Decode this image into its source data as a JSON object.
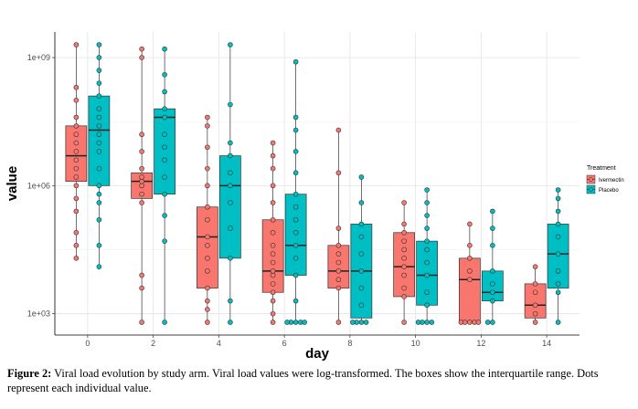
{
  "chart_data": {
    "type": "box",
    "title": "",
    "xlabel": "day",
    "ylabel": "value",
    "y_scale": "log10",
    "ylim": [
      2.5,
      9.6
    ],
    "x_ticks": [
      "0",
      "2",
      "4",
      "6",
      "8",
      "10",
      "12",
      "14"
    ],
    "y_ticks": [
      "1e+03",
      "1e+06",
      "1e+09"
    ],
    "y_tick_values": [
      1000,
      1000000,
      1000000000
    ],
    "legend": {
      "title": "Treatment",
      "position": "right",
      "entries": [
        "Ivermectin",
        "Placebo"
      ]
    },
    "series": [
      {
        "name": "Ivermectin",
        "color": "#F8766D",
        "boxes": [
          {
            "day": 0,
            "q1": 6.1,
            "median": 6.7,
            "q3": 7.4,
            "whisker_low": 4.3,
            "whisker_high": 9.3,
            "points": [
              4.3,
              4.6,
              4.9,
              5.4,
              5.7,
              6.0,
              6.2,
              6.4,
              6.6,
              6.8,
              7.0,
              7.2,
              7.4,
              7.6,
              8.0,
              8.3,
              9.3
            ]
          },
          {
            "day": 2,
            "q1": 5.7,
            "median": 6.1,
            "q3": 6.3,
            "whisker_low": 2.8,
            "whisker_high": 9.2,
            "points": [
              2.8,
              3.6,
              3.9,
              5.6,
              5.8,
              6.0,
              6.1,
              6.2,
              6.4,
              6.8,
              7.2,
              9.0,
              9.2
            ]
          },
          {
            "day": 4,
            "q1": 3.6,
            "median": 4.8,
            "q3": 5.5,
            "whisker_low": 2.8,
            "whisker_high": 7.6,
            "points": [
              2.8,
              3.1,
              3.3,
              3.6,
              4.0,
              4.3,
              4.6,
              4.8,
              5.2,
              5.5,
              6.0,
              6.4,
              6.9,
              7.4,
              7.6
            ]
          },
          {
            "day": 6,
            "q1": 3.5,
            "median": 4.0,
            "q3": 5.2,
            "whisker_low": 2.8,
            "whisker_high": 7.0,
            "points": [
              2.8,
              3.0,
              3.3,
              3.5,
              3.7,
              3.9,
              4.0,
              4.2,
              4.4,
              4.6,
              4.9,
              5.2,
              5.6,
              6.0,
              6.4,
              6.7,
              7.0
            ]
          },
          {
            "day": 8,
            "q1": 3.6,
            "median": 4.0,
            "q3": 4.6,
            "whisker_low": 2.8,
            "whisker_high": 7.3,
            "points": [
              2.8,
              3.6,
              3.8,
              4.0,
              4.2,
              4.4,
              4.6,
              5.0,
              6.3,
              7.3
            ]
          },
          {
            "day": 10,
            "q1": 3.4,
            "median": 4.1,
            "q3": 4.9,
            "whisker_low": 2.8,
            "whisker_high": 5.6,
            "points": [
              2.8,
              3.4,
              3.6,
              3.9,
              4.1,
              4.3,
              4.5,
              4.7,
              4.9,
              5.1,
              5.6
            ]
          },
          {
            "day": 12,
            "q1": 2.8,
            "median": 3.8,
            "q3": 4.3,
            "whisker_low": 2.8,
            "whisker_high": 5.1,
            "points": [
              2.8,
              2.8,
              2.8,
              2.8,
              2.8,
              3.8,
              4.0,
              4.3,
              4.6,
              5.1
            ]
          },
          {
            "day": 14,
            "q1": 2.9,
            "median": 3.2,
            "q3": 3.7,
            "whisker_low": 2.8,
            "whisker_high": 4.1,
            "points": [
              2.8,
              3.0,
              3.2,
              3.5,
              3.7,
              4.1
            ]
          }
        ]
      },
      {
        "name": "Placebo",
        "color": "#00BFC4",
        "boxes": [
          {
            "day": 0,
            "q1": 6.0,
            "median": 7.3,
            "q3": 8.1,
            "whisker_low": 4.1,
            "whisker_high": 9.3,
            "points": [
              4.1,
              4.6,
              5.2,
              5.6,
              5.8,
              6.0,
              6.4,
              6.8,
              7.0,
              7.2,
              7.4,
              7.6,
              7.8,
              8.1,
              8.4,
              8.7,
              9.0,
              9.3
            ]
          },
          {
            "day": 2,
            "q1": 5.8,
            "median": 7.6,
            "q3": 7.8,
            "whisker_low": 2.8,
            "whisker_high": 9.2,
            "points": [
              2.8,
              4.7,
              5.3,
              5.8,
              6.2,
              6.6,
              6.9,
              7.2,
              7.6,
              7.8,
              8.2,
              8.6,
              9.2
            ]
          },
          {
            "day": 4,
            "q1": 4.3,
            "median": 6.0,
            "q3": 6.7,
            "whisker_low": 2.8,
            "whisker_high": 9.3,
            "points": [
              2.8,
              3.3,
              4.3,
              5.0,
              5.6,
              6.0,
              6.3,
              6.7,
              7.0,
              7.9,
              9.3
            ]
          },
          {
            "day": 6,
            "q1": 3.9,
            "median": 4.6,
            "q3": 5.8,
            "whisker_low": 2.8,
            "whisker_high": 8.9,
            "points": [
              2.8,
              2.8,
              2.8,
              2.8,
              2.8,
              3.3,
              3.9,
              4.3,
              4.6,
              4.9,
              5.2,
              5.5,
              5.8,
              6.3,
              6.8,
              7.3,
              7.6,
              8.9
            ]
          },
          {
            "day": 8,
            "q1": 2.9,
            "median": 4.0,
            "q3": 5.1,
            "whisker_low": 2.8,
            "whisker_high": 6.2,
            "points": [
              2.8,
              2.8,
              2.8,
              2.8,
              3.2,
              3.6,
              4.0,
              4.4,
              4.8,
              5.1,
              5.6,
              6.2
            ]
          },
          {
            "day": 10,
            "q1": 3.2,
            "median": 3.9,
            "q3": 4.7,
            "whisker_low": 2.8,
            "whisker_high": 5.9,
            "points": [
              2.8,
              2.8,
              2.8,
              2.8,
              3.2,
              3.5,
              3.9,
              4.2,
              4.5,
              4.7,
              5.0,
              5.3,
              5.6,
              5.9
            ]
          },
          {
            "day": 12,
            "q1": 3.3,
            "median": 3.5,
            "q3": 4.0,
            "whisker_low": 2.8,
            "whisker_high": 5.4,
            "points": [
              2.8,
              2.8,
              3.3,
              3.5,
              3.7,
              4.0,
              4.6,
              5.0,
              5.4
            ]
          },
          {
            "day": 14,
            "q1": 3.6,
            "median": 4.4,
            "q3": 5.1,
            "whisker_low": 2.8,
            "whisker_high": 5.9,
            "points": [
              2.8,
              3.5,
              3.7,
              4.0,
              4.4,
              4.8,
              5.1,
              5.4,
              5.7,
              5.9
            ]
          }
        ]
      }
    ]
  },
  "caption": {
    "label": "Figure 2:",
    "text": " Viral load evolution by study arm. Viral load values were log-transformed. The boxes show the interquartile range. Dots represent each individual value."
  }
}
